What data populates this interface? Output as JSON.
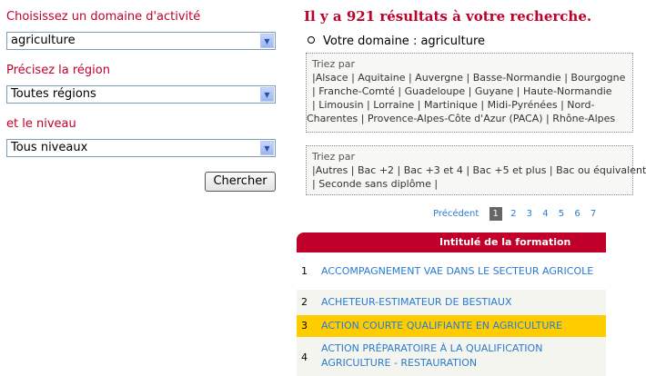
{
  "filters": {
    "domain_label": "Choisissez un domaine d'activité",
    "domain_value": "agriculture",
    "region_label": "Précisez la région",
    "region_value": "Toutes régions",
    "level_label": "et le niveau",
    "level_value": "Tous niveaux",
    "search_button": "Chercher"
  },
  "results": {
    "title": "Il y a 921 résultats à votre recherche.",
    "domain_line": "Votre domaine : agriculture",
    "region_box": {
      "heading": "Triez par",
      "lines": [
        "|Alsace  | Aquitaine  | Auvergne  | Basse-Normandie  | Bourgogne",
        " | Franche-Comté  | Guadeloupe  | Guyane  | Haute-Normandie",
        " | Limousin  | Lorraine  | Martinique  | Midi-Pyrénées  | Nord-",
        "Charentes  | Provence-Alpes-Côte d'Azur (PACA)  | Rhône-Alpes"
      ]
    },
    "level_box": {
      "heading": "Triez par",
      "lines": [
        "|Autres  | Bac +2  | Bac +3 et 4  | Bac +5 et plus  | Bac ou équivalent",
        " | Seconde sans diplôme  |"
      ]
    },
    "pager": {
      "prev": "Précédent",
      "pages": [
        "1",
        "2",
        "3",
        "4",
        "5",
        "6",
        "7"
      ],
      "current": "1"
    },
    "table_header": "Intitulé de la formation",
    "rows": [
      {
        "n": "1",
        "title": "ACCOMPAGNEMENT VAE DANS LE SECTEUR AGRICOLE"
      },
      {
        "n": "2",
        "title": "ACHETEUR-ESTIMATEUR DE BESTIAUX"
      },
      {
        "n": "3",
        "title": "ACTION COURTE QUALIFIANTE EN AGRICULTURE"
      },
      {
        "n": "4",
        "title": "ACTION PRÉPARATOIRE À LA QUALIFICATION AGRICULTURE - RESTAURATION"
      }
    ],
    "colors": {
      "accent": "#c0002a",
      "link": "#2a7ad0",
      "highlight": "#ffcc00",
      "alt_row": "#f5f5f0"
    }
  }
}
